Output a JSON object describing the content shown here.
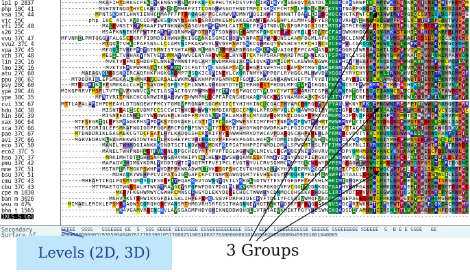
{
  "sequences": [
    {
      "name": "1p1 p 2837",
      "prefix": "-----------MKAFIHTDR"
    },
    {
      "name": "php 10C 41",
      "prefix": "-----------MSHTNTNQD"
    },
    {
      "name": "vsa 15C 44",
      "prefix": "----------MPNTSKDHTL"
    },
    {
      "name": "vic 25C   ",
      "prefix": "--------php 10C 41% "
    },
    {
      "name": "vfi 25C 40",
      "prefix": "------------MALEVNSI"
    },
    {
      "name": "s26 25C   ",
      "prefix": "------------MSAPKNNE"
    },
    {
      "name": "vvu 37C 47",
      "prefix": "MFVNRILPMTQGGFFALGSC"
    },
    {
      "name": "vvu2 37C 4",
      "prefix": "------------MTQQLTVH"
    },
    {
      "name": "vpa 37C 45",
      "prefix": "------------MEQQLTVH"
    },
    {
      "name": "vch 37C 48",
      "prefix": "------------MESILTVH"
    },
    {
      "name": "lin 23C 16",
      "prefix": "-------------MVKTVEF"
    },
    {
      "name": "lmo 23C 16",
      "prefix": "-------------MVKTVEF"
    },
    {
      "name": "atu 27C 60",
      "prefix": "------MAEAGVKLEDSNKE"
    },
    {
      "name": "ppu 28C 62",
      "prefix": "---MTDDDRIKLEPSMEKAL"
    },
    {
      "name": "psy 28C 60",
      "prefix": "---MTDDDRIKLEPSMEKAL"
    },
    {
      "name": "ype 29C 46",
      "prefix": "MIKQPRRVFMSPLTVTRVVP"
    },
    {
      "name": "ype 30C 35",
      "prefix": "----------MPRTYRITPN"
    },
    {
      "name": "cvi 33C 67",
      "prefix": "MTTLAPALARIHPDMEAVLD"
    },
    {
      "name": "hdu 34C 38",
      "prefix": "------------MISNTEAI"
    },
    {
      "name": "hin 36C 39",
      "prefix": "------------MISNTEAI"
    },
    {
      "name": "xax 36C 64",
      "prefix": "----MTESEGRIQLEPSMKA"
    },
    {
      "name": "xca 37C 66",
      "prefix": "----MTESEGRIQLEPSMKA"
    },
    {
      "name": "pae 37C 67",
      "prefix": "----MTDNDDRIKLEASMEK"
    },
    {
      "name": "avi 37C 66",
      "prefix": "----MGRVEDRVKLEASMEK"
    },
    {
      "name": "eco 37C 50",
      "prefix": "------------MANELTWH"
    },
    {
      "name": "eco2 37C 5",
      "prefix": "------------MANELTWH"
    },
    {
      "name": "hso 37C 37",
      "prefix": "-------------MRKIMHT"
    },
    {
      "name": "pmu 37C 42",
      "prefix": "------------MAPAQVLH"
    },
    {
      "name": "mne 37C 51",
      "prefix": "------------MSTHPLRF"
    },
    {
      "name": "bsu 37C 51",
      "prefix": "---------------MDHAQ"
    },
    {
      "name": "cmu 37C 43",
      "prefix": "------MHEAFTIEQLPQSM"
    },
    {
      "name": "cbu 37C 43",
      "prefix": "---------MTTMAETQTWN"
    },
    {
      "name": "cpe m 1830",
      "prefix": "----------------MKEV"
    },
    {
      "name": "ban m 3026",
      "prefix": "--------------MKHVLK"
    },
    {
      "name": "wsu m 47%",
      "prefix": "--MIMADLERIKLEPSMEKA"
    },
    {
      "name": "bha t 1565",
      "prefix": "----------------MKAV"
    },
    {
      "name": "1XLS S Col",
      "prefix": "--------------------"
    }
  ],
  "annotation_rows": [
    {
      "label": "Secondary",
      "values": "EEEEE  SSSS   SSSEEEE EE  S  SSS EEEEE EEESSEEE ESSEEEEEEEEEEE SSE  EEE  SSEEEEEEESSE EEEEEE SSEEEEEEE SSEEEE  S  B E E SSEE   EE"
    },
    {
      "name_hint": "surface",
      "label": "Surface of",
      "values": "48845000068052930560464076227663801057700025100510637703000000010140950200100000459391061040005"
    }
  ],
  "inline_note": "php 10C 41% 46912186 Photobacterium profundum",
  "annotations": {
    "levels_label": "Levels (2D, 3D)",
    "groups_label": "3 Groups"
  },
  "colors": {
    "levels_box_bg": "#bfe6fb",
    "levels_text": "#1a3f8a",
    "arrow": "#000000"
  }
}
